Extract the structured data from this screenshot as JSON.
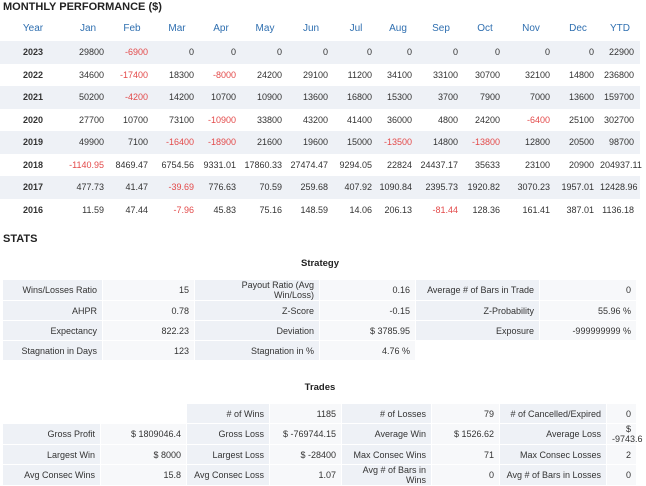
{
  "monthly": {
    "title": "MONTHLY PERFORMANCE ($)",
    "columns": [
      "Year",
      "Jan",
      "Feb",
      "Mar",
      "Apr",
      "May",
      "Jun",
      "Jul",
      "Aug",
      "Sep",
      "Oct",
      "Nov",
      "Dec",
      "YTD"
    ],
    "rows": [
      [
        "2023",
        "29800",
        "-6900",
        "0",
        "0",
        "0",
        "0",
        "0",
        "0",
        "0",
        "0",
        "0",
        "0",
        "22900"
      ],
      [
        "2022",
        "34600",
        "-17400",
        "18300",
        "-8000",
        "24200",
        "29100",
        "11200",
        "34100",
        "33100",
        "30700",
        "32100",
        "14800",
        "236800"
      ],
      [
        "2021",
        "50200",
        "-4200",
        "14200",
        "10700",
        "10900",
        "13600",
        "16800",
        "15300",
        "3700",
        "7900",
        "7000",
        "13600",
        "159700"
      ],
      [
        "2020",
        "27700",
        "10700",
        "73100",
        "-10900",
        "33800",
        "43200",
        "41400",
        "36000",
        "4800",
        "24200",
        "-6400",
        "25100",
        "302700"
      ],
      [
        "2019",
        "49900",
        "7100",
        "-16400",
        "-18900",
        "21600",
        "19600",
        "15000",
        "-13500",
        "14800",
        "-13800",
        "12800",
        "20500",
        "98700"
      ],
      [
        "2018",
        "-1140.95",
        "8469.47",
        "6754.56",
        "9331.01",
        "17860.33",
        "27474.47",
        "9294.05",
        "22824",
        "24437.17",
        "35633",
        "23100",
        "20900",
        "204937.11"
      ],
      [
        "2017",
        "477.73",
        "41.47",
        "-39.69",
        "776.63",
        "70.59",
        "259.68",
        "407.92",
        "1090.84",
        "2395.73",
        "1920.82",
        "3070.23",
        "1957.01",
        "12428.96"
      ],
      [
        "2016",
        "11.59",
        "47.44",
        "-7.96",
        "45.83",
        "75.16",
        "148.59",
        "14.06",
        "206.13",
        "-81.44",
        "128.36",
        "161.41",
        "387.01",
        "1136.18"
      ]
    ]
  },
  "stats": {
    "title": "STATS",
    "strategy": {
      "title": "Strategy",
      "rows": [
        [
          "Wins/Losses Ratio",
          "15",
          "Payout Ratio (Avg Win/Loss)",
          "0.16",
          "Average # of Bars in Trade",
          "0"
        ],
        [
          "AHPR",
          "0.78",
          "Z-Score",
          "-0.15",
          "Z-Probability",
          "55.96 %"
        ],
        [
          "Expectancy",
          "822.23",
          "Deviation",
          "$ 3785.95",
          "Exposure",
          "-999999999 %"
        ],
        [
          "Stagnation in Days",
          "123",
          "Stagnation in %",
          "4.76 %",
          "",
          ""
        ]
      ]
    },
    "trades": {
      "title": "Trades",
      "rows": [
        [
          "",
          "",
          "# of Wins",
          "1185",
          "# of Losses",
          "79",
          "# of Cancelled/Expired",
          "0"
        ],
        [
          "Gross Profit",
          "$ 1809046.4",
          "Gross Loss",
          "$ -769744.15",
          "Average Win",
          "$ 1526.62",
          "Average Loss",
          "$ -9743.6"
        ],
        [
          "Largest Win",
          "$ 8000",
          "Largest Loss",
          "$ -28400",
          "Max Consec Wins",
          "71",
          "Max Consec Losses",
          "2"
        ],
        [
          "Avg Consec Wins",
          "15.8",
          "Avg Consec Loss",
          "1.07",
          "Avg # of Bars in Wins",
          "0",
          "Avg # of Bars in Losses",
          "0"
        ]
      ]
    }
  },
  "colors": {
    "header_text": "#2f6fb0",
    "negative": "#e34a4a",
    "row_stripe": "#eef1f6"
  }
}
